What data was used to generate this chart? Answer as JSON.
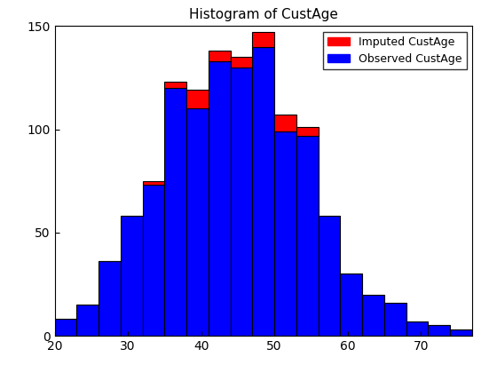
{
  "title": "Histogram of CustAge",
  "bin_edges": [
    20,
    23,
    26,
    29,
    32,
    35,
    38,
    41,
    44,
    47,
    50,
    53,
    56,
    59,
    62,
    65,
    68,
    71,
    74,
    77
  ],
  "observed_counts": [
    8,
    15,
    36,
    58,
    73,
    120,
    110,
    133,
    130,
    140,
    99,
    97,
    58,
    30,
    20,
    16,
    7,
    5,
    3
  ],
  "imputed_counts": [
    0,
    0,
    0,
    0,
    2,
    3,
    9,
    5,
    5,
    7,
    8,
    4,
    0,
    0,
    0,
    0,
    0,
    0,
    0
  ],
  "observed_color": "#0000FF",
  "imputed_color": "#FF0000",
  "edge_color": "#000000",
  "xlim": [
    20,
    77
  ],
  "ylim": [
    0,
    150
  ],
  "yticks": [
    0,
    50,
    100,
    150
  ],
  "xticks": [
    20,
    30,
    40,
    50,
    60,
    70
  ],
  "legend_labels": [
    "Imputed CustAge",
    "Observed CustAge"
  ],
  "legend_colors": [
    "#FF0000",
    "#0000FF"
  ],
  "title_fontsize": 11,
  "tick_fontsize": 10
}
